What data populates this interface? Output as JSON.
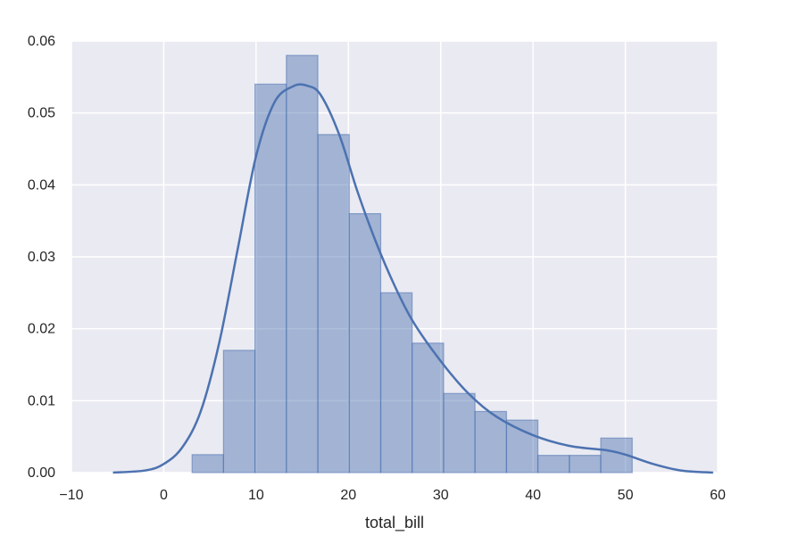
{
  "chart_data": {
    "type": "bar",
    "title": "",
    "xlabel": "total_bill",
    "ylabel": "",
    "xlim": [
      -10,
      60
    ],
    "ylim": [
      0,
      0.06
    ],
    "grid": true,
    "xticks": [
      -10,
      0,
      10,
      20,
      30,
      40,
      50,
      60
    ],
    "xtick_labels": [
      "−10",
      "0",
      "10",
      "20",
      "30",
      "40",
      "50",
      "60"
    ],
    "yticks": [
      0,
      0.01,
      0.02,
      0.03,
      0.04,
      0.05,
      0.06
    ],
    "ytick_labels": [
      "0.00",
      "0.01",
      "0.02",
      "0.03",
      "0.04",
      "0.05",
      "0.06"
    ],
    "histogram": {
      "bin_edges": [
        3.07,
        6.47,
        9.88,
        13.28,
        16.69,
        20.09,
        23.5,
        26.9,
        30.31,
        33.71,
        37.12,
        40.52,
        43.93,
        47.33,
        50.74
      ],
      "densities": [
        0.0025,
        0.017,
        0.054,
        0.058,
        0.047,
        0.036,
        0.025,
        0.018,
        0.011,
        0.0085,
        0.0073,
        0.0024,
        0.0024,
        0.0048
      ]
    },
    "kde": {
      "x": [
        -5.5,
        -2,
        0,
        2,
        4,
        6,
        8,
        10,
        12,
        14,
        15.5,
        17,
        19,
        21,
        23,
        25,
        27,
        30,
        33,
        36,
        40,
        44,
        48,
        50,
        53,
        56,
        59.5
      ],
      "y": [
        0.0,
        0.0003,
        0.0012,
        0.0035,
        0.0085,
        0.018,
        0.031,
        0.044,
        0.0515,
        0.0537,
        0.0538,
        0.0525,
        0.047,
        0.039,
        0.032,
        0.026,
        0.021,
        0.0155,
        0.011,
        0.0078,
        0.0052,
        0.0037,
        0.0031,
        0.0025,
        0.0012,
        0.0003,
        0.0
      ]
    },
    "colors": {
      "bar_fill": "#4c72b0",
      "line": "#4c72b0",
      "background": "#eaeaf2",
      "grid": "#ffffff"
    }
  }
}
